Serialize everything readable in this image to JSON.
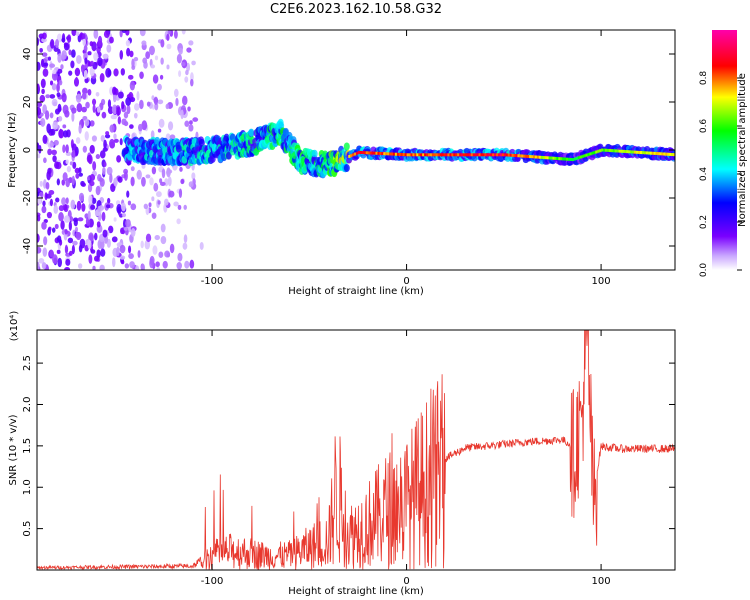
{
  "title": "C2E6.2023.162.10.58.G32",
  "chart_data": [
    {
      "type": "heatmap",
      "title": "C2E6.2023.162.10.58.G32",
      "xlabel": "Height of straight line (km)",
      "ylabel": "Frequency (Hz)",
      "xlim": [
        -190,
        138
      ],
      "ylim": [
        -50,
        50
      ],
      "x_ticks": [
        -100,
        0,
        100
      ],
      "y_ticks": [
        -40,
        -20,
        0,
        20,
        40
      ],
      "colorbar": {
        "label": "Normalized spectral amplitude",
        "range": [
          0.0,
          1.0
        ],
        "ticks": [
          0.0,
          0.2,
          0.4,
          0.6,
          0.8
        ],
        "colormap": "rainbow (white-purple-blue-cyan-green-yellow-red-magenta)"
      },
      "ridge": [
        {
          "x": -140,
          "y": 0,
          "amp": 0.45
        },
        {
          "x": -120,
          "y": -1,
          "amp": 0.5
        },
        {
          "x": -100,
          "y": 0,
          "amp": 0.5
        },
        {
          "x": -80,
          "y": 3,
          "amp": 0.55
        },
        {
          "x": -65,
          "y": 7,
          "amp": 0.6
        },
        {
          "x": -55,
          "y": -5,
          "amp": 0.6
        },
        {
          "x": -40,
          "y": -6,
          "amp": 0.65
        },
        {
          "x": -25,
          "y": -1,
          "amp": 0.9
        },
        {
          "x": 0,
          "y": -2,
          "amp": 0.85
        },
        {
          "x": 50,
          "y": -2,
          "amp": 0.95
        },
        {
          "x": 85,
          "y": -4,
          "amp": 0.6
        },
        {
          "x": 100,
          "y": 0,
          "amp": 0.7
        },
        {
          "x": 138,
          "y": -2,
          "amp": 0.8
        }
      ]
    },
    {
      "type": "line",
      "xlabel": "Height of straight line (km)",
      "ylabel": "SNR (10 * v/v)",
      "y_multiplier": "(x10⁴)",
      "xlim": [
        -190,
        138
      ],
      "ylim": [
        0,
        29000
      ],
      "x_ticks": [
        -100,
        0,
        100
      ],
      "y_ticks": [
        5000,
        10000,
        15000,
        20000,
        25000
      ],
      "y_tick_labels": [
        "0.5",
        "1.0",
        "1.5",
        "2.0",
        "2.5"
      ],
      "color": "#e8382e",
      "series": [
        {
          "x": [
            -190,
            -150,
            -110,
            -100,
            -90,
            -80,
            -70,
            -60,
            -50,
            -40,
            -36,
            -30,
            -20,
            -10,
            0,
            10,
            20,
            30,
            40,
            60,
            80,
            86,
            90,
            93,
            96,
            100,
            110,
            138
          ],
          "y": [
            300,
            400,
            500,
            2000,
            2500,
            2200,
            1800,
            2000,
            3000,
            4000,
            11000,
            4500,
            6000,
            8000,
            9000,
            11500,
            13500,
            14800,
            15000,
            15500,
            15800,
            15000,
            19000,
            29000,
            9000,
            15000,
            14700,
            14700
          ]
        }
      ]
    }
  ],
  "labels": {
    "top_x": "Height of straight line (km)",
    "top_y": "Frequency (Hz)",
    "bottom_x": "Height of straight line (km)",
    "bottom_y": "SNR (10 * v/v)",
    "bottom_mult": "(x10⁴)",
    "colorbar": "Normalized spectral amplitude"
  }
}
